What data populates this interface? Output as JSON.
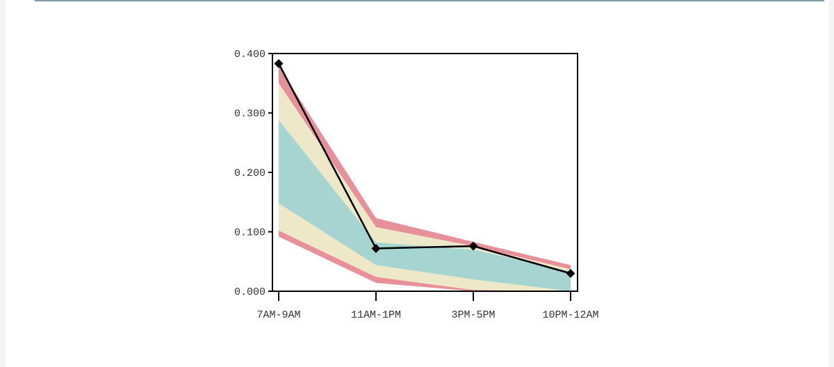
{
  "chart_data": {
    "type": "area",
    "title": "",
    "xlabel": "",
    "ylabel": "",
    "categories": [
      "7AM-9AM",
      "11AM-1PM",
      "3PM-5PM",
      "10PM-12AM"
    ],
    "ylim": [
      0,
      0.4
    ],
    "yticks": [
      0.0,
      0.1,
      0.2,
      0.3,
      0.4
    ],
    "ytick_labels": [
      "0.000",
      "0.100",
      "0.200",
      "0.300",
      "0.400"
    ],
    "grid": false,
    "legend": "none",
    "bands": [
      {
        "color": "#e8909a",
        "lower": [
          0.092,
          0.014,
          0.0,
          0.0
        ],
        "upper": [
          0.378,
          0.123,
          0.083,
          0.044
        ]
      },
      {
        "color": "#ece8c8",
        "lower": [
          0.102,
          0.024,
          0.002,
          0.0
        ],
        "upper": [
          0.35,
          0.108,
          0.076,
          0.037
        ]
      },
      {
        "color": "#a6d4d0",
        "lower": [
          0.148,
          0.044,
          0.02,
          0.0
        ],
        "upper": [
          0.288,
          0.082,
          0.07,
          0.033
        ]
      }
    ],
    "series": [
      {
        "values": [
          0.383,
          0.072,
          0.076,
          0.03
        ],
        "color": "#000000",
        "marker": "diamond"
      }
    ]
  }
}
